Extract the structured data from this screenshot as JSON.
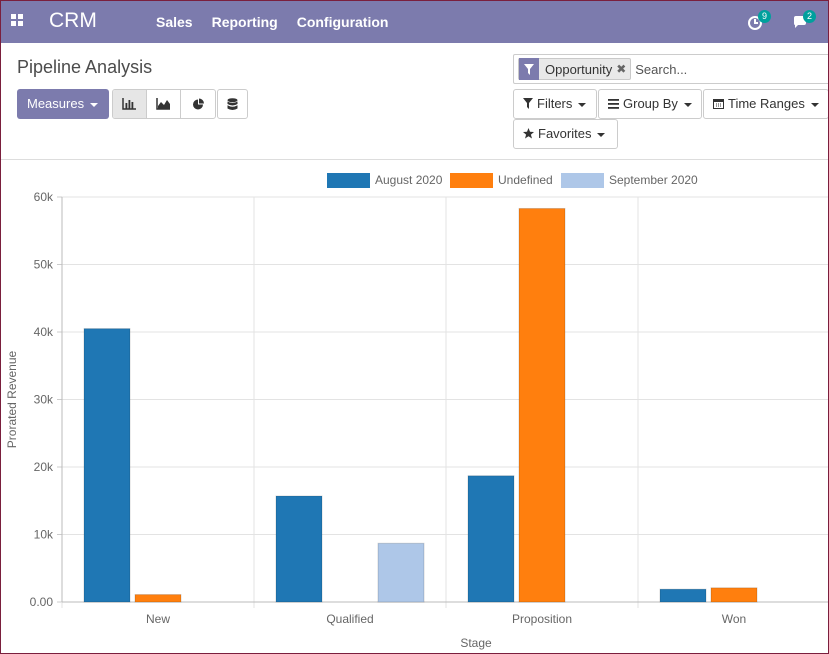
{
  "navbar": {
    "brand": "CRM",
    "menu": [
      "Sales",
      "Reporting",
      "Configuration"
    ],
    "activity_count": "9",
    "messages_count": "2",
    "bg_color": "#7c7bad"
  },
  "control_panel": {
    "title": "Pipeline Analysis",
    "measures_label": "Measures",
    "view_modes": [
      "bar-chart-icon",
      "area-chart-icon",
      "pie-chart-icon"
    ],
    "search": {
      "facet_value": "Opportunity",
      "placeholder": "Search..."
    },
    "filters_label": "Filters",
    "group_by_label": "Group By",
    "time_ranges_label": "Time Ranges",
    "favorites_label": "Favorites"
  },
  "chart_data": {
    "type": "bar",
    "categories": [
      "New",
      "Qualified",
      "Proposition",
      "Won"
    ],
    "series": [
      {
        "name": "August 2020",
        "color": "#1f77b4",
        "values": [
          40500,
          15700,
          18700,
          1900
        ]
      },
      {
        "name": "Undefined",
        "color": "#ff7f0e",
        "values": [
          1100,
          0,
          58300,
          2100
        ]
      },
      {
        "name": "September 2020",
        "color": "#aec7e8",
        "values": [
          0,
          8700,
          0,
          0
        ]
      }
    ],
    "xlabel": "Stage",
    "ylabel": "Prorated Revenue",
    "ylim": [
      0,
      60000
    ],
    "yticks": [
      0,
      10000,
      20000,
      30000,
      40000,
      50000,
      60000
    ],
    "ytick_labels": [
      "0.00",
      "10k",
      "20k",
      "30k",
      "40k",
      "50k",
      "60k"
    ],
    "grid": true,
    "legend": "top-center"
  }
}
